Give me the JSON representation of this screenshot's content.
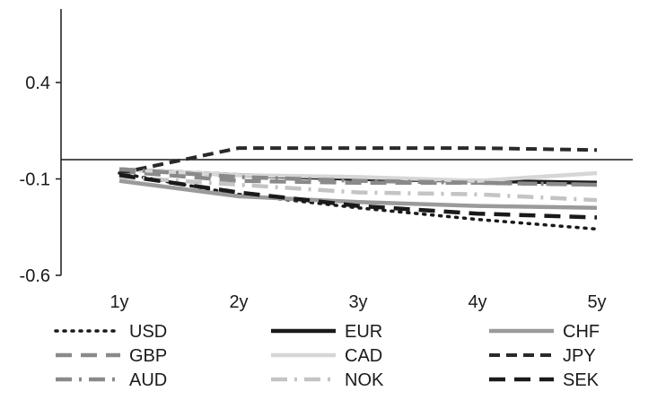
{
  "chart_data": {
    "type": "line",
    "title": "",
    "xlabel": "",
    "ylabel": "",
    "categories": [
      "1y",
      "2y",
      "3y",
      "4y",
      "5y"
    ],
    "ylim": [
      -0.6,
      0.4
    ],
    "y_ticks": [
      "0.4",
      "-0.1",
      "-0.6"
    ],
    "y_tick_values": [
      0.4,
      -0.1,
      -0.6
    ],
    "baseline": 0,
    "grid": false,
    "legend_position": "bottom",
    "series": [
      {
        "name": "USD",
        "values": [
          -0.07,
          -0.18,
          -0.25,
          -0.31,
          -0.36
        ],
        "color": "#1a1a1a",
        "dash": "dot"
      },
      {
        "name": "EUR",
        "values": [
          -0.05,
          -0.08,
          -0.1,
          -0.11,
          -0.12
        ],
        "color": "#1a1a1a",
        "dash": "solid"
      },
      {
        "name": "CHF",
        "values": [
          -0.11,
          -0.19,
          -0.22,
          -0.24,
          -0.25
        ],
        "color": "#9a9a9a",
        "dash": "solid"
      },
      {
        "name": "GBP",
        "values": [
          -0.06,
          -0.11,
          -0.12,
          -0.12,
          -0.13
        ],
        "color": "#8a8a8a",
        "dash": "longdash"
      },
      {
        "name": "CAD",
        "values": [
          -0.05,
          -0.08,
          -0.09,
          -0.11,
          -0.07
        ],
        "color": "#d6d6d6",
        "dash": "solid"
      },
      {
        "name": "JPY",
        "values": [
          -0.07,
          0.06,
          0.06,
          0.06,
          0.05
        ],
        "color": "#2a2a2a",
        "dash": "dash"
      },
      {
        "name": "AUD",
        "values": [
          -0.05,
          -0.09,
          -0.11,
          -0.12,
          -0.13
        ],
        "color": "#8a8a8a",
        "dash": "dashdot"
      },
      {
        "name": "NOK",
        "values": [
          -0.09,
          -0.13,
          -0.17,
          -0.18,
          -0.21
        ],
        "color": "#c4c4c4",
        "dash": "dashdot"
      },
      {
        "name": "SEK",
        "values": [
          -0.08,
          -0.17,
          -0.24,
          -0.28,
          -0.3
        ],
        "color": "#1a1a1a",
        "dash": "longdash"
      }
    ]
  }
}
